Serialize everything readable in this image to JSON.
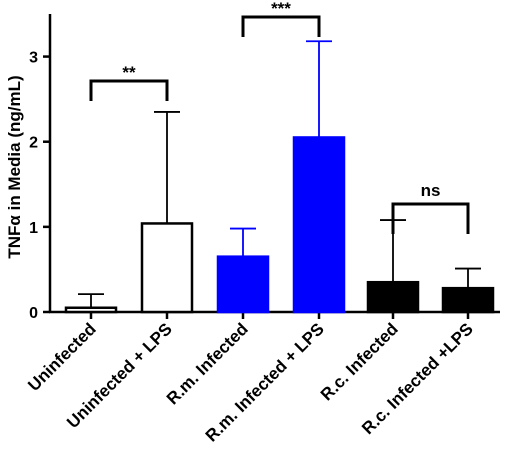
{
  "chart_data": {
    "type": "bar",
    "title": "",
    "xlabel": "",
    "ylabel": "TNFα in Media (ng/mL)",
    "ylim": [
      0,
      3.5
    ],
    "yticks": [
      0,
      1,
      2,
      3
    ],
    "ytick_labels": [
      "0",
      "1",
      "2",
      "3"
    ],
    "grid": false,
    "categories": [
      "Uninfected",
      "Uninfected + LPS",
      "R.m. Infected",
      "R.m. Infected + LPS",
      "R.c. Infected",
      "R.c. Infected +LPS"
    ],
    "values": [
      0.05,
      1.04,
      0.65,
      2.05,
      0.35,
      0.28
    ],
    "error_upper": [
      0.21,
      2.35,
      0.98,
      3.18,
      1.08,
      0.51
    ],
    "bar_fill": [
      "#ffffff",
      "#ffffff",
      "#0000ff",
      "#0000ff",
      "#000000",
      "#000000"
    ],
    "bar_stroke": [
      "#000000",
      "#000000",
      "#0000ff",
      "#0000ff",
      "#000000",
      "#000000"
    ],
    "annotations": [
      {
        "text": "**",
        "between": [
          0,
          1
        ]
      },
      {
        "text": "***",
        "between": [
          2,
          3
        ]
      },
      {
        "text": "ns",
        "between": [
          4,
          5
        ]
      }
    ]
  }
}
